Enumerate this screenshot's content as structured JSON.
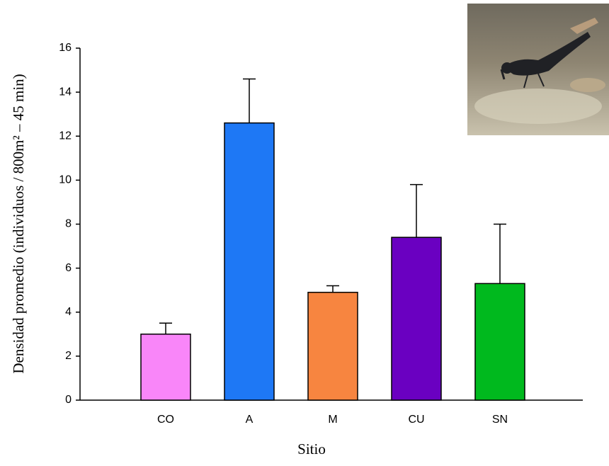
{
  "chart_data": {
    "type": "bar",
    "x_label": "Sitio",
    "y_label": "Densidad promedio (individuos / 800m² – 45 min)",
    "categories": [
      "CO",
      "A",
      "M",
      "CU",
      "SN"
    ],
    "values": [
      3.0,
      12.6,
      4.9,
      7.4,
      5.3
    ],
    "errors": [
      0.5,
      2.0,
      0.3,
      2.4,
      2.7
    ],
    "colors": [
      "#f986f9",
      "#1e78f5",
      "#f78540",
      "#6a00c1",
      "#00b91e"
    ],
    "ylim": [
      0,
      16
    ],
    "yticks": [
      0,
      2,
      4,
      6,
      8,
      10,
      12,
      14,
      16
    ],
    "grid": false
  }
}
